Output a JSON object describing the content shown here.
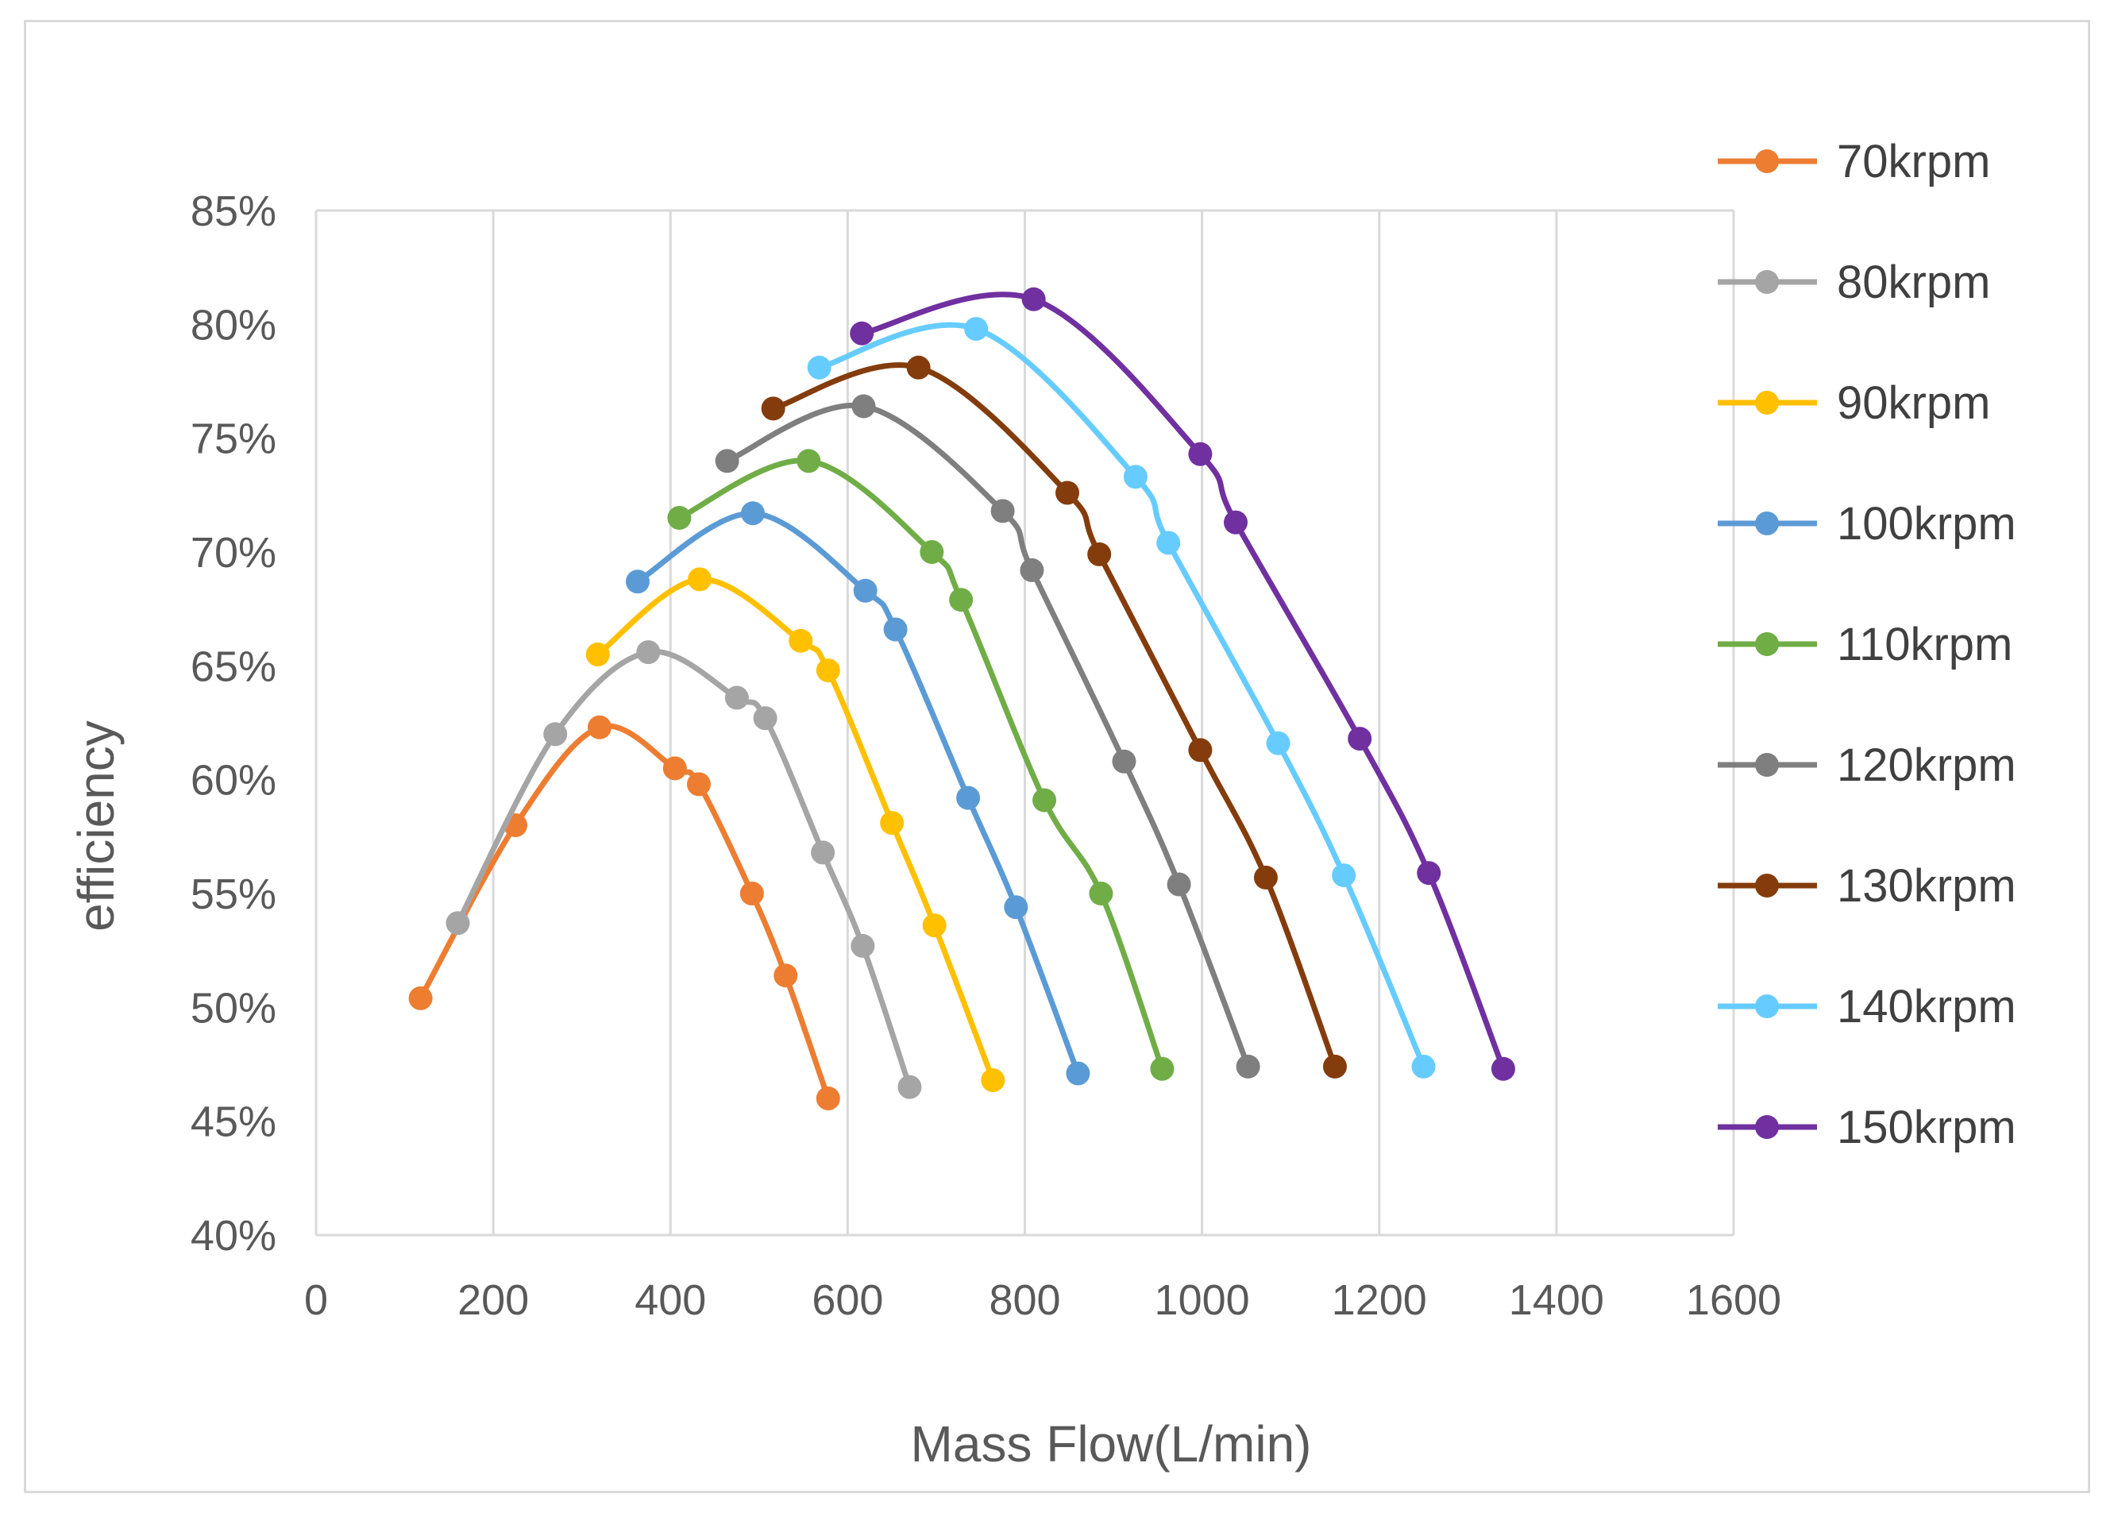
{
  "chart_data": {
    "type": "scatter",
    "title": "",
    "xlabel": "Mass Flow(L/min)",
    "ylabel": "efficiency",
    "xlim": [
      0,
      1600
    ],
    "ylim": [
      40,
      85
    ],
    "x_ticks": [
      0,
      200,
      400,
      600,
      800,
      1000,
      1200,
      1400,
      1600
    ],
    "x_tick_labels": [
      "0",
      "200",
      "400",
      "600",
      "800",
      "1000",
      "1200",
      "1400",
      "1600"
    ],
    "y_ticks": [
      40,
      45,
      50,
      55,
      60,
      65,
      70,
      75,
      80,
      85
    ],
    "y_tick_labels": [
      "40%",
      "45%",
      "50%",
      "55%",
      "60%",
      "65%",
      "70%",
      "75%",
      "80%",
      "85%"
    ],
    "grid": "vertical",
    "legend_position": "right",
    "smooth": true,
    "series": [
      {
        "name": "70krpm",
        "color": "#ED7D31",
        "x": [
          118,
          225,
          320,
          405,
          432,
          492,
          530,
          578
        ],
        "y": [
          50.4,
          58.0,
          62.3,
          60.5,
          59.8,
          55.0,
          51.4,
          46.0
        ]
      },
      {
        "name": "80krpm",
        "color": "#A5A5A5",
        "x": [
          160,
          270,
          375,
          475,
          507,
          572,
          617,
          670
        ],
        "y": [
          53.7,
          62.0,
          65.6,
          63.6,
          62.7,
          56.8,
          52.7,
          46.5
        ]
      },
      {
        "name": "90krpm",
        "color": "#FFC000",
        "x": [
          318,
          433,
          547,
          578,
          650,
          698,
          764
        ],
        "y": [
          65.5,
          68.8,
          66.1,
          64.8,
          58.1,
          53.6,
          46.8
        ]
      },
      {
        "name": "100krpm",
        "color": "#5B9BD5",
        "x": [
          363,
          493,
          620,
          654,
          736,
          790,
          860
        ],
        "y": [
          68.7,
          71.7,
          68.3,
          66.6,
          59.2,
          54.4,
          47.1
        ]
      },
      {
        "name": "110krpm",
        "color": "#70AD47",
        "x": [
          410,
          556,
          695,
          728,
          822,
          886,
          955
        ],
        "y": [
          71.5,
          74.0,
          70.0,
          67.9,
          59.1,
          55.0,
          47.3
        ]
      },
      {
        "name": "120krpm",
        "color": "#7F7F7F",
        "x": [
          464,
          618,
          775,
          808,
          912,
          974,
          1052
        ],
        "y": [
          74.0,
          76.4,
          71.8,
          69.2,
          60.8,
          55.4,
          47.4
        ]
      },
      {
        "name": "130krpm",
        "color": "#843C0C",
        "x": [
          516,
          680,
          848,
          884,
          998,
          1072,
          1150
        ],
        "y": [
          76.3,
          78.1,
          72.6,
          69.9,
          61.3,
          55.7,
          47.4
        ]
      },
      {
        "name": "140krpm",
        "color": "#66CCFF",
        "x": [
          568,
          745,
          925,
          962,
          1086,
          1160,
          1250
        ],
        "y": [
          78.1,
          79.8,
          73.3,
          70.4,
          61.6,
          55.8,
          47.4
        ]
      },
      {
        "name": "150krpm",
        "color": "#7030A0",
        "x": [
          616,
          810,
          998,
          1038,
          1178,
          1256,
          1340
        ],
        "y": [
          79.6,
          81.1,
          74.3,
          71.3,
          61.8,
          55.9,
          47.3
        ]
      }
    ]
  }
}
